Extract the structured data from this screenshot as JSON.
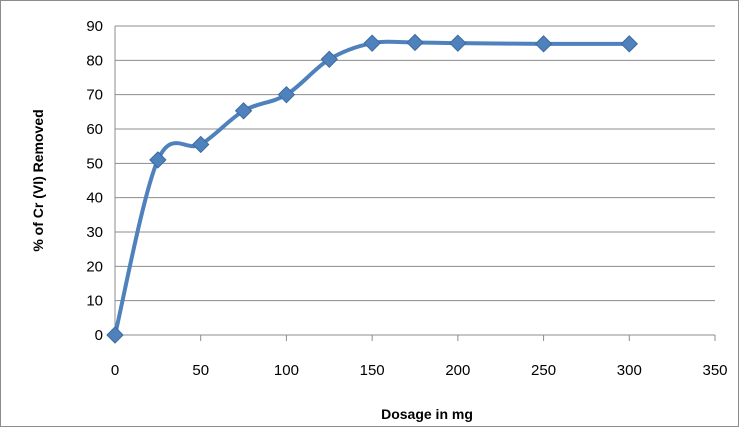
{
  "chart_data": {
    "type": "line",
    "title": "",
    "xlabel": "Dosage in mg",
    "ylabel": "% of Cr (VI) Removed",
    "xlim": [
      0,
      350
    ],
    "ylim": [
      0,
      90
    ],
    "xticks": [
      0,
      50,
      100,
      150,
      200,
      250,
      300,
      350
    ],
    "yticks": [
      0,
      10,
      20,
      30,
      40,
      50,
      60,
      70,
      80,
      90
    ],
    "grid": "horizontal",
    "legend": "none",
    "series": [
      {
        "color": "#4F81BD",
        "marker": "diamond",
        "smooth": true,
        "x": [
          0,
          25,
          50,
          75,
          100,
          125,
          150,
          175,
          200,
          250,
          300
        ],
        "y": [
          0,
          51,
          55.5,
          65.3,
          70,
          80.3,
          85,
          85.2,
          85,
          84.8,
          84.8
        ]
      }
    ]
  }
}
